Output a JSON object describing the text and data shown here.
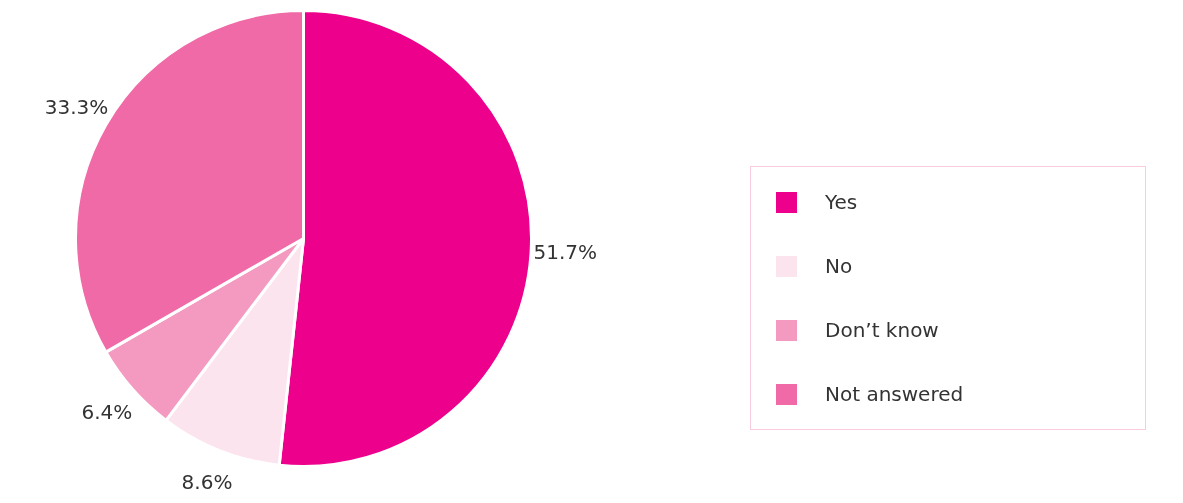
{
  "chart_data": {
    "type": "pie",
    "categories": [
      "Yes",
      "No",
      "Don’t know",
      "Not answered"
    ],
    "values": [
      51.7,
      8.6,
      6.4,
      33.3
    ],
    "colors": [
      "#ec008c",
      "#fce4ef",
      "#f49ac1",
      "#f06aa7"
    ],
    "value_labels": [
      "51.7%",
      "8.6%",
      "6.4%",
      "33.3%"
    ],
    "legend": "right"
  }
}
